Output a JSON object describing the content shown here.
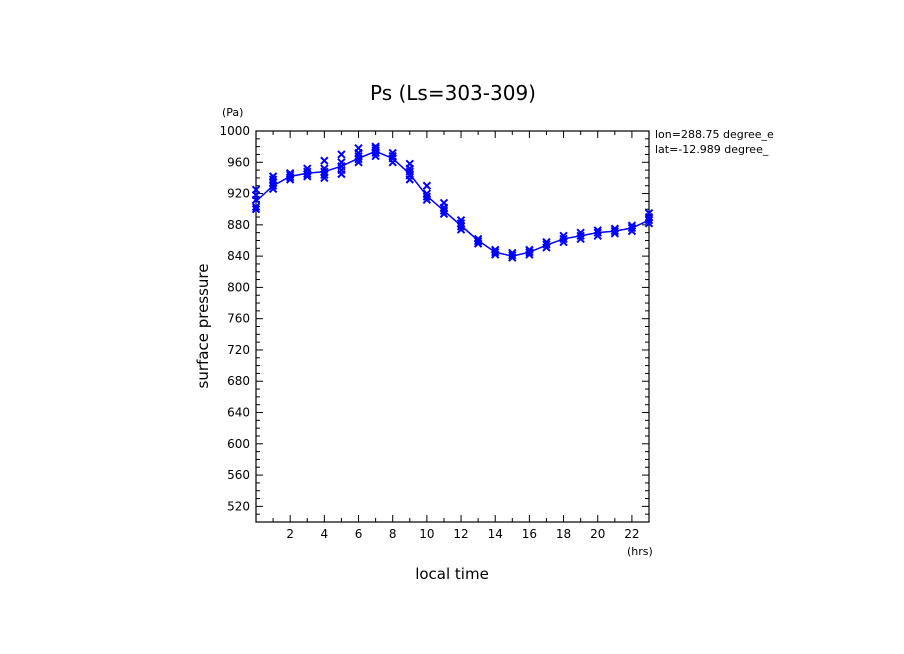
{
  "chart_data": {
    "type": "line",
    "title": "Ps (Ls=303-309)",
    "xlabel": "local time",
    "ylabel": "surface pressure",
    "x_unit": "(hrs)",
    "y_unit": "(Pa)",
    "xlim": [
      0,
      23
    ],
    "ylim": [
      500,
      1000
    ],
    "x_ticks": [
      2,
      4,
      6,
      8,
      10,
      12,
      14,
      16,
      18,
      20,
      22
    ],
    "x_tick_labels": [
      "2",
      "4",
      "6",
      "8",
      "10",
      "12",
      "14",
      "16",
      "18",
      "20",
      "22"
    ],
    "y_ticks": [
      520,
      560,
      600,
      640,
      680,
      720,
      760,
      800,
      840,
      880,
      920,
      960,
      1000
    ],
    "y_tick_labels": [
      "520",
      "560",
      "600",
      "640",
      "680",
      "720",
      "760",
      "800",
      "840",
      "880",
      "920",
      "960",
      "1000"
    ],
    "annotations": [
      "lon=288.75 degree_e",
      "lat=-12.989 degree_"
    ],
    "grid": false,
    "color": "#0000ff",
    "series": [
      {
        "style": "line",
        "x": [
          0,
          1,
          2,
          3,
          4,
          5,
          6,
          7,
          8,
          9,
          10,
          11,
          12,
          13,
          14,
          15,
          16,
          17,
          18,
          19,
          20,
          21,
          22,
          23
        ],
        "values": [
          910,
          930,
          942,
          946,
          948,
          955,
          965,
          974,
          965,
          945,
          917,
          898,
          879,
          860,
          845,
          840,
          845,
          854,
          862,
          866,
          870,
          872,
          876,
          886
        ]
      },
      {
        "style": "markers",
        "marker": "x",
        "points": [
          [
            0,
            900
          ],
          [
            0,
            903
          ],
          [
            0,
            912
          ],
          [
            0,
            918
          ],
          [
            0,
            925
          ],
          [
            1,
            926
          ],
          [
            1,
            930
          ],
          [
            1,
            934
          ],
          [
            1,
            938
          ],
          [
            1,
            942
          ],
          [
            2,
            938
          ],
          [
            2,
            941
          ],
          [
            2,
            944
          ],
          [
            2,
            946
          ],
          [
            3,
            942
          ],
          [
            3,
            945
          ],
          [
            3,
            948
          ],
          [
            3,
            952
          ],
          [
            4,
            940
          ],
          [
            4,
            944
          ],
          [
            4,
            948
          ],
          [
            4,
            952
          ],
          [
            4,
            962
          ],
          [
            5,
            945
          ],
          [
            5,
            950
          ],
          [
            5,
            955
          ],
          [
            5,
            960
          ],
          [
            5,
            970
          ],
          [
            6,
            960
          ],
          [
            6,
            964
          ],
          [
            6,
            968
          ],
          [
            6,
            972
          ],
          [
            6,
            978
          ],
          [
            7,
            968
          ],
          [
            7,
            972
          ],
          [
            7,
            975
          ],
          [
            7,
            978
          ],
          [
            7,
            980
          ],
          [
            8,
            960
          ],
          [
            8,
            965
          ],
          [
            8,
            968
          ],
          [
            8,
            972
          ],
          [
            9,
            938
          ],
          [
            9,
            943
          ],
          [
            9,
            948
          ],
          [
            9,
            952
          ],
          [
            9,
            958
          ],
          [
            10,
            912
          ],
          [
            10,
            916
          ],
          [
            10,
            920
          ],
          [
            10,
            930
          ],
          [
            11,
            894
          ],
          [
            11,
            898
          ],
          [
            11,
            902
          ],
          [
            11,
            908
          ],
          [
            12,
            874
          ],
          [
            12,
            878
          ],
          [
            12,
            882
          ],
          [
            12,
            886
          ],
          [
            13,
            856
          ],
          [
            13,
            859
          ],
          [
            13,
            862
          ],
          [
            14,
            842
          ],
          [
            14,
            845
          ],
          [
            14,
            848
          ],
          [
            15,
            838
          ],
          [
            15,
            841
          ],
          [
            15,
            844
          ],
          [
            16,
            842
          ],
          [
            16,
            845
          ],
          [
            16,
            848
          ],
          [
            17,
            851
          ],
          [
            17,
            855
          ],
          [
            17,
            858
          ],
          [
            18,
            858
          ],
          [
            18,
            862
          ],
          [
            18,
            866
          ],
          [
            19,
            862
          ],
          [
            19,
            866
          ],
          [
            19,
            870
          ],
          [
            20,
            866
          ],
          [
            20,
            870
          ],
          [
            20,
            873
          ],
          [
            21,
            869
          ],
          [
            21,
            872
          ],
          [
            21,
            875
          ],
          [
            22,
            872
          ],
          [
            22,
            876
          ],
          [
            22,
            879
          ],
          [
            23,
            882
          ],
          [
            23,
            886
          ],
          [
            23,
            890
          ],
          [
            23,
            895
          ]
        ]
      }
    ]
  }
}
